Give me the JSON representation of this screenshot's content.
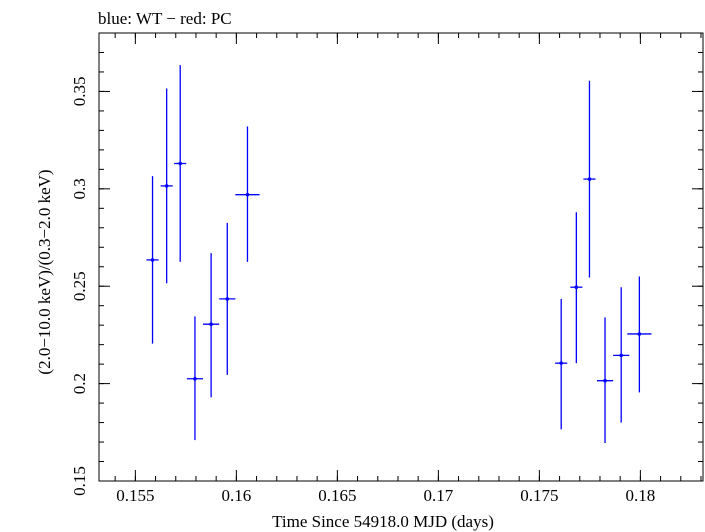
{
  "chart_data": {
    "type": "scatter",
    "title": "blue: WT − red: PC",
    "xlabel": "Time Since 54918.0 MJD (days)",
    "ylabel": "(2.0−10.0 keV)/(0.3−2.0 keV)",
    "xlim": [
      0.1532,
      0.1831
    ],
    "ylim": [
      0.15,
      0.38
    ],
    "x_ticks": [
      {
        "value": 0.155,
        "label": "0.155"
      },
      {
        "value": 0.16,
        "label": "0.16"
      },
      {
        "value": 0.165,
        "label": "0.165"
      },
      {
        "value": 0.17,
        "label": "0.17"
      },
      {
        "value": 0.175,
        "label": "0.175"
      },
      {
        "value": 0.18,
        "label": "0.18"
      }
    ],
    "y_ticks": [
      {
        "value": 0.15,
        "label": "0.15"
      },
      {
        "value": 0.2,
        "label": "0.2"
      },
      {
        "value": 0.25,
        "label": "0.25"
      },
      {
        "value": 0.3,
        "label": "0.3"
      },
      {
        "value": 0.35,
        "label": "0.35"
      }
    ],
    "x_minor_step": 0.001,
    "y_minor_step": 0.01,
    "series": [
      {
        "name": "WT",
        "color": "#0000ff",
        "points": [
          {
            "x": 0.15585,
            "xerr": 0.0003,
            "y": 0.2635,
            "ylo": 0.2205,
            "yhi": 0.3065
          },
          {
            "x": 0.15655,
            "xerr": 0.0003,
            "y": 0.3015,
            "ylo": 0.2515,
            "yhi": 0.3515
          },
          {
            "x": 0.15722,
            "xerr": 0.0003,
            "y": 0.313,
            "ylo": 0.2625,
            "yhi": 0.3635
          },
          {
            "x": 0.15795,
            "xerr": 0.0004,
            "y": 0.2025,
            "ylo": 0.171,
            "yhi": 0.2345
          },
          {
            "x": 0.15875,
            "xerr": 0.0004,
            "y": 0.2305,
            "ylo": 0.193,
            "yhi": 0.267
          },
          {
            "x": 0.15955,
            "xerr": 0.0004,
            "y": 0.2435,
            "ylo": 0.2045,
            "yhi": 0.2825
          },
          {
            "x": 0.16055,
            "xerr": 0.0006,
            "y": 0.297,
            "ylo": 0.2625,
            "yhi": 0.332
          },
          {
            "x": 0.17608,
            "xerr": 0.0003,
            "y": 0.2105,
            "ylo": 0.1765,
            "yhi": 0.2435
          },
          {
            "x": 0.17683,
            "xerr": 0.0003,
            "y": 0.2495,
            "ylo": 0.2105,
            "yhi": 0.288
          },
          {
            "x": 0.17748,
            "xerr": 0.0003,
            "y": 0.305,
            "ylo": 0.2545,
            "yhi": 0.3555
          },
          {
            "x": 0.17825,
            "xerr": 0.0004,
            "y": 0.2015,
            "ylo": 0.1695,
            "yhi": 0.234
          },
          {
            "x": 0.17905,
            "xerr": 0.0004,
            "y": 0.2145,
            "ylo": 0.18,
            "yhi": 0.2495
          },
          {
            "x": 0.17995,
            "xerr": 0.0006,
            "y": 0.2255,
            "ylo": 0.1955,
            "yhi": 0.255
          }
        ]
      }
    ]
  }
}
